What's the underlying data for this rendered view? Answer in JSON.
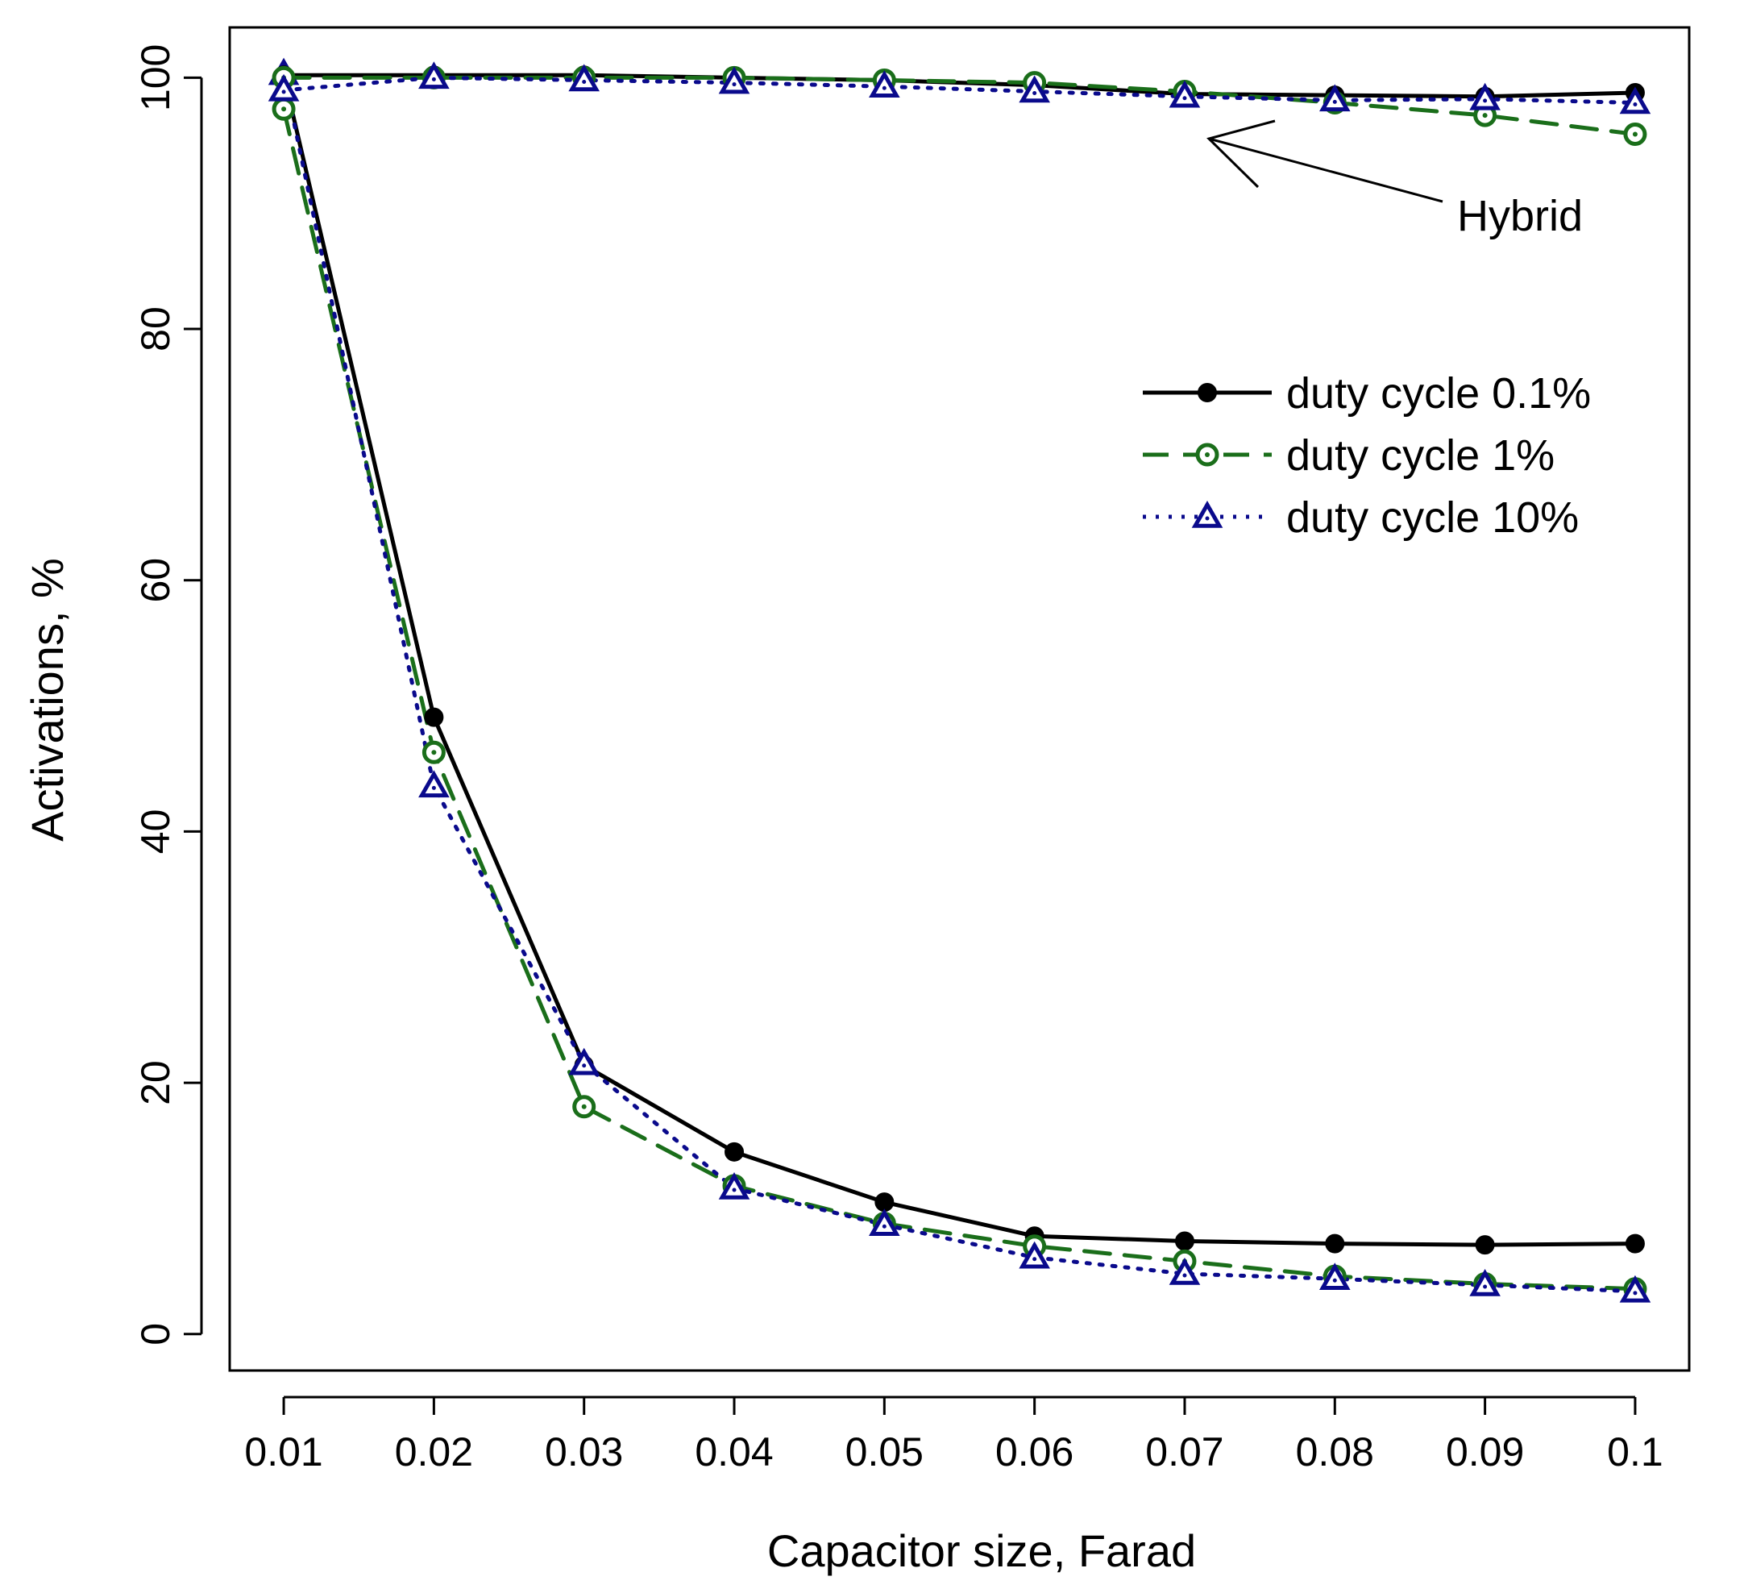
{
  "chart_data": {
    "type": "line",
    "title": "",
    "xlabel": "Capacitor size, Farad",
    "ylabel": "Activations, %",
    "x": [
      0.01,
      0.02,
      0.03,
      0.04,
      0.05,
      0.06,
      0.07,
      0.08,
      0.09,
      0.1
    ],
    "x_tick_labels": [
      "0.01",
      "0.02",
      "0.03",
      "0.04",
      "0.05",
      "0.06",
      "0.07",
      "0.08",
      "0.09",
      "0.1"
    ],
    "y_ticks": [
      0,
      20,
      40,
      60,
      80,
      100
    ],
    "y_tick_labels": [
      "0",
      "20",
      "40",
      "60",
      "80",
      "100"
    ],
    "xlim": [
      0.0064,
      0.1036
    ],
    "ylim": [
      -2.9,
      104.0
    ],
    "grid": false,
    "legend_position": "top-right",
    "series": [
      {
        "name": "duty cycle 0.1%",
        "group": "standard",
        "color": "#000000",
        "line_style": "solid",
        "marker": "filled-circle",
        "values": [
          100.2,
          49.1,
          21.4,
          14.5,
          10.5,
          7.8,
          7.4,
          7.2,
          7.1,
          7.2
        ]
      },
      {
        "name": "duty cycle 1%",
        "group": "standard",
        "color": "#1a6e1a",
        "line_style": "dashed",
        "marker": "open-circle",
        "values": [
          97.5,
          46.3,
          18.1,
          11.8,
          8.8,
          7.0,
          5.8,
          4.6,
          4.0,
          3.6
        ]
      },
      {
        "name": "duty cycle 10%",
        "group": "standard",
        "color": "#0a0a8c",
        "line_style": "dotted",
        "marker": "open-triangle",
        "values": [
          100.3,
          43.6,
          21.5,
          11.6,
          8.7,
          6.1,
          4.8,
          4.4,
          3.9,
          3.4
        ]
      },
      {
        "name": "duty cycle 0.1%",
        "group": "hybrid",
        "color": "#000000",
        "line_style": "solid",
        "marker": "filled-circle",
        "values": [
          100.2,
          100.2,
          100.2,
          100.0,
          99.8,
          99.4,
          98.7,
          98.6,
          98.5,
          98.8
        ]
      },
      {
        "name": "duty cycle 1%",
        "group": "hybrid",
        "color": "#1a6e1a",
        "line_style": "dashed",
        "marker": "open-circle",
        "values": [
          100.0,
          100.0,
          100.0,
          100.0,
          99.8,
          99.6,
          98.9,
          98.0,
          97.0,
          95.5
        ]
      },
      {
        "name": "duty cycle 10%",
        "group": "hybrid",
        "color": "#0a0a8c",
        "line_style": "dotted",
        "marker": "open-triangle",
        "values": [
          99.0,
          100.0,
          99.8,
          99.6,
          99.3,
          98.9,
          98.5,
          98.2,
          98.3,
          98.0
        ]
      }
    ],
    "legend": [
      {
        "label": "duty cycle 0.1%",
        "color": "#000000",
        "line_style": "solid",
        "marker": "filled-circle"
      },
      {
        "label": "duty cycle 1%",
        "color": "#1a6e1a",
        "line_style": "dashed",
        "marker": "open-circle"
      },
      {
        "label": "duty cycle 10%",
        "color": "#0a0a8c",
        "line_style": "dotted",
        "marker": "open-triangle"
      }
    ],
    "annotations": [
      {
        "text": "Hybrid",
        "points_to_x": 0.07,
        "points_to_y": 95.5
      }
    ]
  }
}
